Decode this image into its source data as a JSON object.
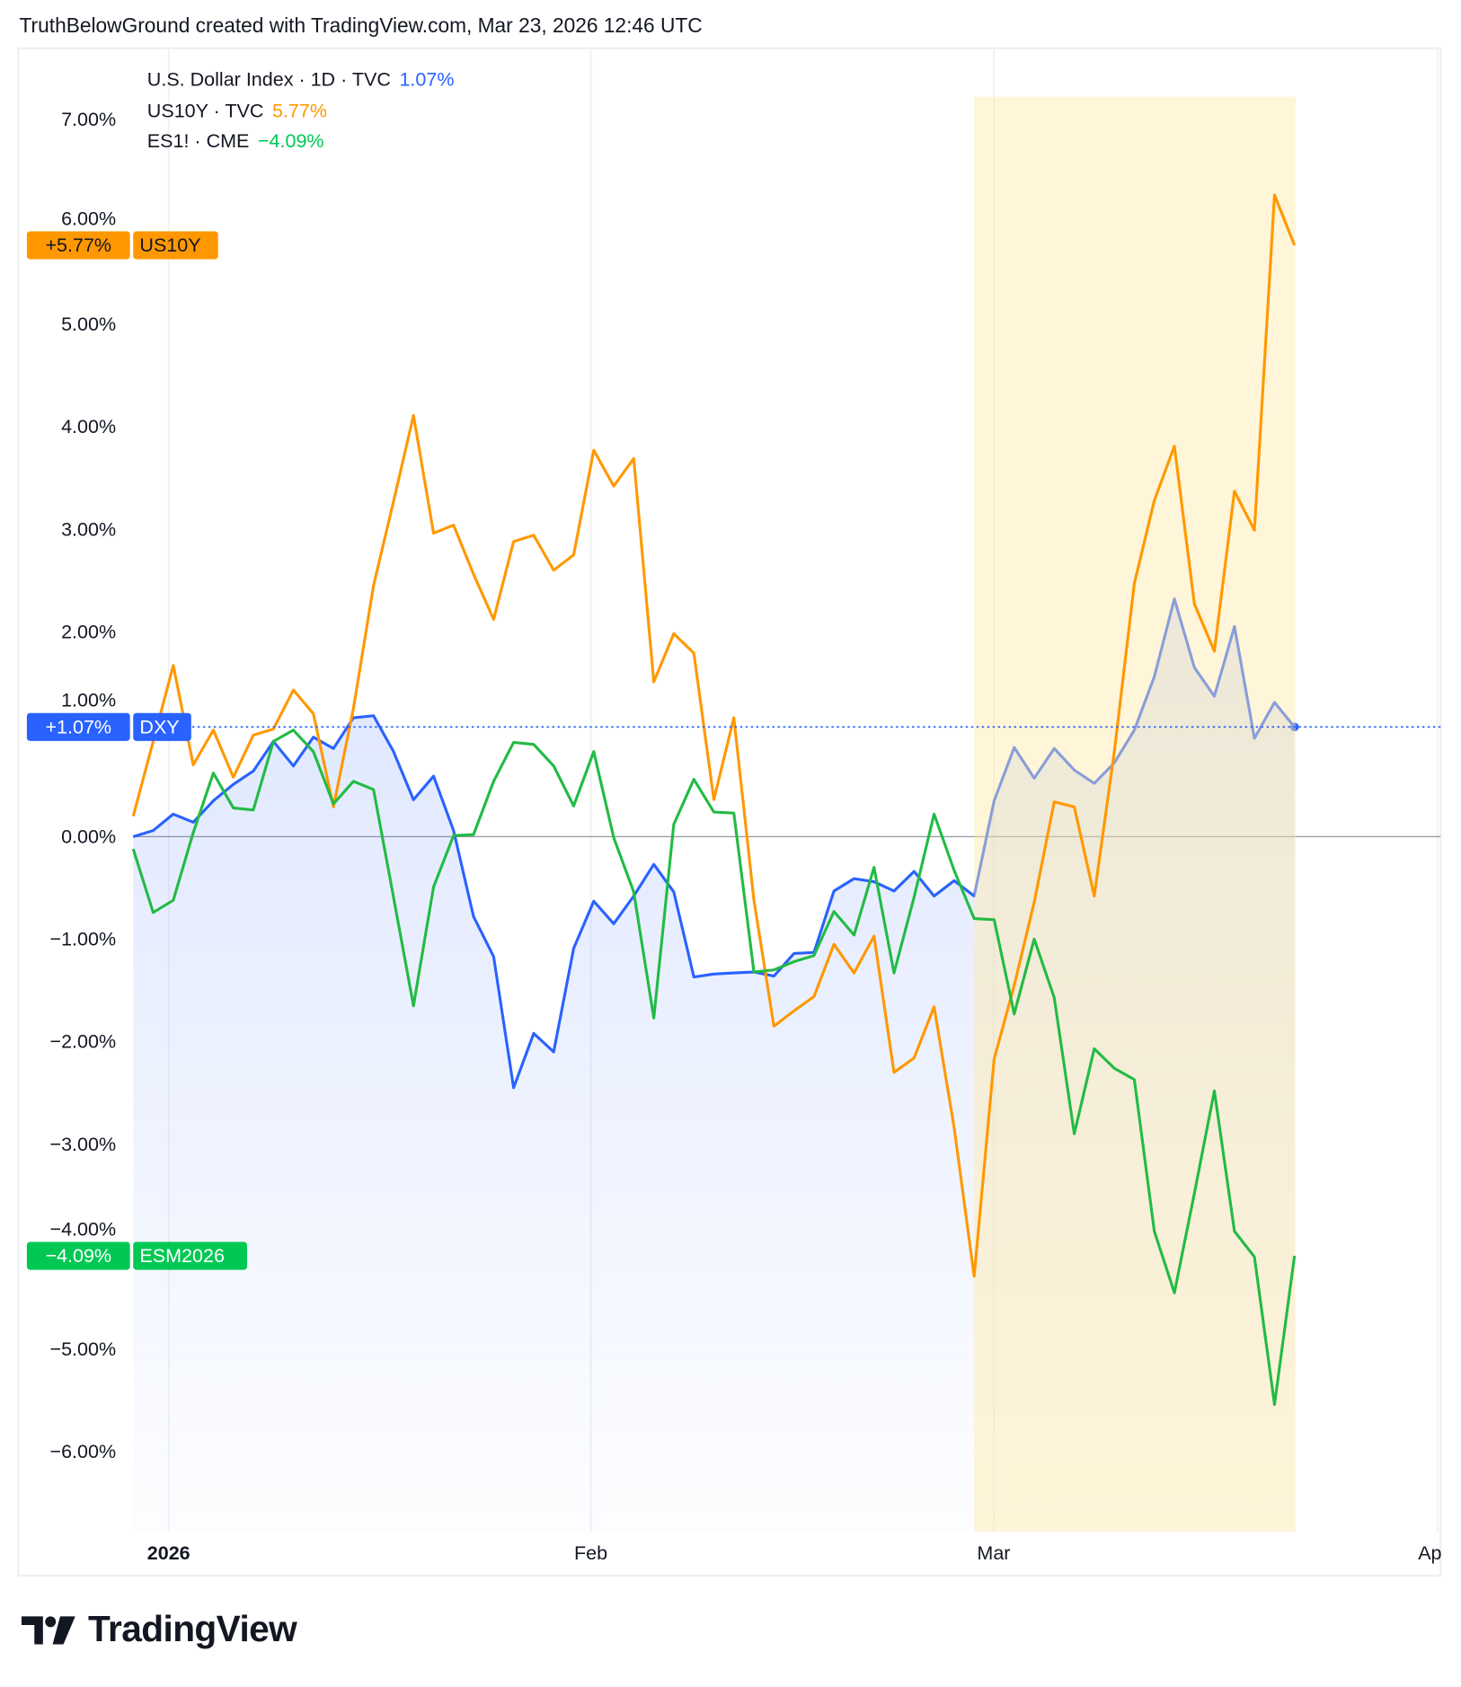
{
  "header": {
    "title": "TruthBelowGround created with TradingView.com, Mar 23, 2026 12:46 UTC"
  },
  "legend": [
    {
      "label": "U.S. Dollar Index · 1D · TVC",
      "value": "1.07%",
      "color": "#2962ff"
    },
    {
      "label": "US10Y · TVC",
      "value": "5.77%",
      "color": "#ff9800"
    },
    {
      "label": "ES1! · CME",
      "value": "−4.09%",
      "color": "#00c853"
    }
  ],
  "price_labels": [
    {
      "value": "+5.77%",
      "symbol": "US10Y",
      "color": "#ff9800",
      "level": 5.77
    },
    {
      "value": "+1.07%",
      "symbol": "DXY",
      "color": "#2962ff",
      "level": 1.07
    },
    {
      "value": "−4.09%",
      "symbol": "ESM2026",
      "color": "#00c853",
      "level": -4.09
    }
  ],
  "logo": {
    "text": "TradingView"
  },
  "chart_data": {
    "type": "line",
    "title": "",
    "xlabel": "",
    "ylabel": "",
    "ylim": [
      -6.8,
      7.2
    ],
    "yticks": [
      "7.00%",
      "6.00%",
      "5.00%",
      "4.00%",
      "3.00%",
      "2.00%",
      "1.00%",
      "0.00%",
      "−1.00%",
      "−2.00%",
      "−3.00%",
      "−4.00%",
      "−5.00%",
      "−6.00%"
    ],
    "ytick_values": [
      7,
      6,
      5,
      4,
      3,
      2,
      1,
      0,
      -1,
      -2,
      -3,
      -4,
      -5,
      -6
    ],
    "xticks": [
      {
        "label": "2026",
        "date": "2026-01-02",
        "bold": true
      },
      {
        "label": "Feb",
        "date": "2026-02-02"
      },
      {
        "label": "Mar",
        "date": "2026-03-02"
      },
      {
        "label": "Ap",
        "date": "2026-04-01"
      }
    ],
    "grid": true,
    "highlight_range": {
      "from": "2026-02-27",
      "to": "2026-03-23",
      "color": "#fff3d1"
    },
    "x": [
      "2025-12-30",
      "2025-12-31",
      "2026-01-02",
      "2026-01-05",
      "2026-01-06",
      "2026-01-07",
      "2026-01-08",
      "2026-01-09",
      "2026-01-12",
      "2026-01-13",
      "2026-01-14",
      "2026-01-15",
      "2026-01-16",
      "2026-01-19",
      "2026-01-20",
      "2026-01-21",
      "2026-01-22",
      "2026-01-23",
      "2026-01-26",
      "2026-01-27",
      "2026-01-28",
      "2026-01-29",
      "2026-01-30",
      "2026-02-02",
      "2026-02-03",
      "2026-02-04",
      "2026-02-05",
      "2026-02-06",
      "2026-02-09",
      "2026-02-10",
      "2026-02-11",
      "2026-02-12",
      "2026-02-13",
      "2026-02-16",
      "2026-02-17",
      "2026-02-18",
      "2026-02-19",
      "2026-02-20",
      "2026-02-23",
      "2026-02-24",
      "2026-02-25",
      "2026-02-26",
      "2026-02-27",
      "2026-03-02",
      "2026-03-03",
      "2026-03-04",
      "2026-03-05",
      "2026-03-06",
      "2026-03-09",
      "2026-03-10",
      "2026-03-11",
      "2026-03-12",
      "2026-03-13",
      "2026-03-16",
      "2026-03-17",
      "2026-03-18",
      "2026-03-19",
      "2026-03-20",
      "2026-03-23"
    ],
    "series": [
      {
        "name": "DXY",
        "color": "#2962ff",
        "area": true,
        "values": [
          0.0,
          0.06,
          0.22,
          0.14,
          0.35,
          0.51,
          0.64,
          0.93,
          0.69,
          0.97,
          0.86,
          1.16,
          1.18,
          0.83,
          0.36,
          0.59,
          0.06,
          -0.78,
          -1.17,
          -2.45,
          -1.92,
          -2.1,
          -1.09,
          -0.63,
          -0.85,
          -0.58,
          -0.27,
          -0.54,
          -1.37,
          -1.34,
          -1.33,
          -1.32,
          -1.36,
          -1.14,
          -1.13,
          -0.53,
          -0.41,
          -0.44,
          -0.53,
          -0.34,
          -0.58,
          -0.43,
          -0.58,
          0.35,
          0.87,
          0.57,
          0.86,
          0.65,
          0.52,
          0.72,
          1.04,
          1.56,
          2.32,
          1.65,
          1.37,
          2.05,
          0.96,
          1.31,
          1.07
        ]
      },
      {
        "name": "US10Y",
        "color": "#ff9800",
        "values": [
          0.2,
          0.93,
          1.67,
          0.7,
          1.04,
          0.58,
          0.99,
          1.05,
          1.43,
          1.2,
          0.29,
          1.25,
          2.45,
          3.27,
          4.11,
          2.96,
          3.04,
          2.56,
          2.12,
          2.88,
          2.94,
          2.6,
          2.75,
          3.77,
          3.42,
          3.69,
          1.51,
          1.98,
          1.79,
          0.36,
          1.16,
          -0.62,
          -1.85,
          -1.7,
          -1.56,
          -1.05,
          -1.33,
          -0.97,
          -2.3,
          -2.16,
          -1.66,
          -2.84,
          -4.29,
          -2.17,
          -1.45,
          -0.64,
          0.34,
          0.29,
          -0.58,
          0.83,
          2.47,
          3.28,
          3.81,
          2.27,
          1.81,
          3.37,
          2.99,
          6.26,
          5.77
        ]
      },
      {
        "name": "ESM2026",
        "color": "#22bb44",
        "values": [
          -0.12,
          -0.74,
          -0.62,
          0.04,
          0.62,
          0.28,
          0.26,
          0.93,
          1.04,
          0.83,
          0.32,
          0.54,
          0.46,
          -0.59,
          -1.65,
          -0.49,
          0.01,
          0.02,
          0.54,
          0.92,
          0.9,
          0.69,
          0.3,
          0.83,
          -0.01,
          -0.54,
          -1.77,
          0.12,
          0.56,
          0.24,
          0.23,
          -1.32,
          -1.3,
          -1.22,
          -1.16,
          -0.73,
          -0.96,
          -0.3,
          -1.33,
          -0.59,
          0.22,
          -0.33,
          -0.8,
          -0.81,
          -1.73,
          -1.0,
          -1.57,
          -2.9,
          -2.07,
          -2.26,
          -2.37,
          -3.85,
          -4.45,
          -3.48,
          -2.48,
          -3.85,
          -4.1,
          -5.54,
          -4.09
        ]
      }
    ]
  }
}
